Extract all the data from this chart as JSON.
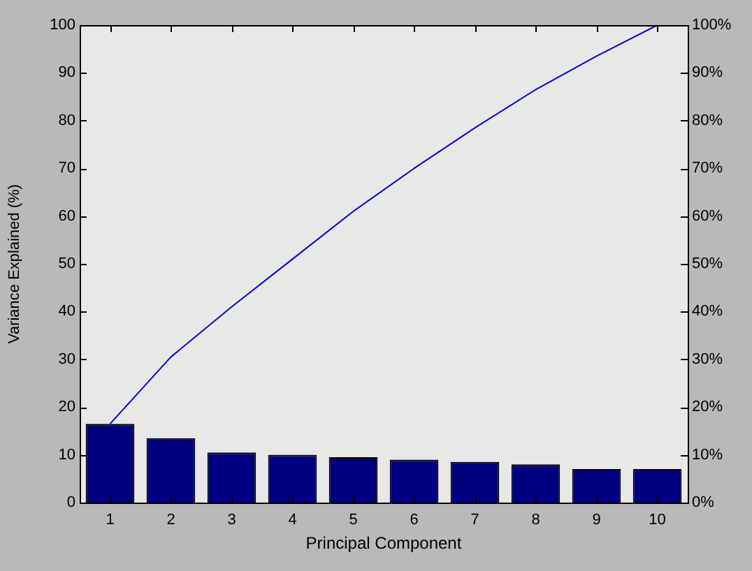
{
  "chart_data": {
    "type": "bar",
    "xlabel": "Principal Component",
    "ylabel": "Variance Explained (%)",
    "categories": [
      "1",
      "2",
      "3",
      "4",
      "5",
      "6",
      "7",
      "8",
      "9",
      "10"
    ],
    "series": [
      {
        "color": "#000080",
        "values": [
          16.5,
          13.5,
          10.5,
          10,
          9.5,
          9,
          8.5,
          8,
          7,
          7
        ]
      },
      {
        "type": "line",
        "color": "#0000ff",
        "axis": "y2",
        "values": [
          16.5,
          30.5,
          41,
          51,
          61,
          70,
          78.5,
          86.5,
          93.5,
          100
        ]
      }
    ],
    "ylim": [
      0,
      100
    ],
    "yticks": [
      0,
      10,
      20,
      30,
      40,
      50,
      60,
      70,
      80,
      90,
      100
    ],
    "y2lim": [
      0,
      100
    ],
    "y2ticks": [
      {
        "value": 0,
        "label": "0%"
      },
      {
        "value": 10,
        "label": "10%"
      },
      {
        "value": 20,
        "label": "20%"
      },
      {
        "value": 30,
        "label": "30%"
      },
      {
        "value": 40,
        "label": "40%"
      },
      {
        "value": 50,
        "label": "50%"
      },
      {
        "value": 60,
        "label": "60%"
      },
      {
        "value": 70,
        "label": "70%"
      },
      {
        "value": 80,
        "label": "80%"
      },
      {
        "value": 90,
        "label": "90%"
      },
      {
        "value": 100,
        "label": "100%"
      }
    ],
    "grid": false,
    "legend": false,
    "marker": "none"
  }
}
